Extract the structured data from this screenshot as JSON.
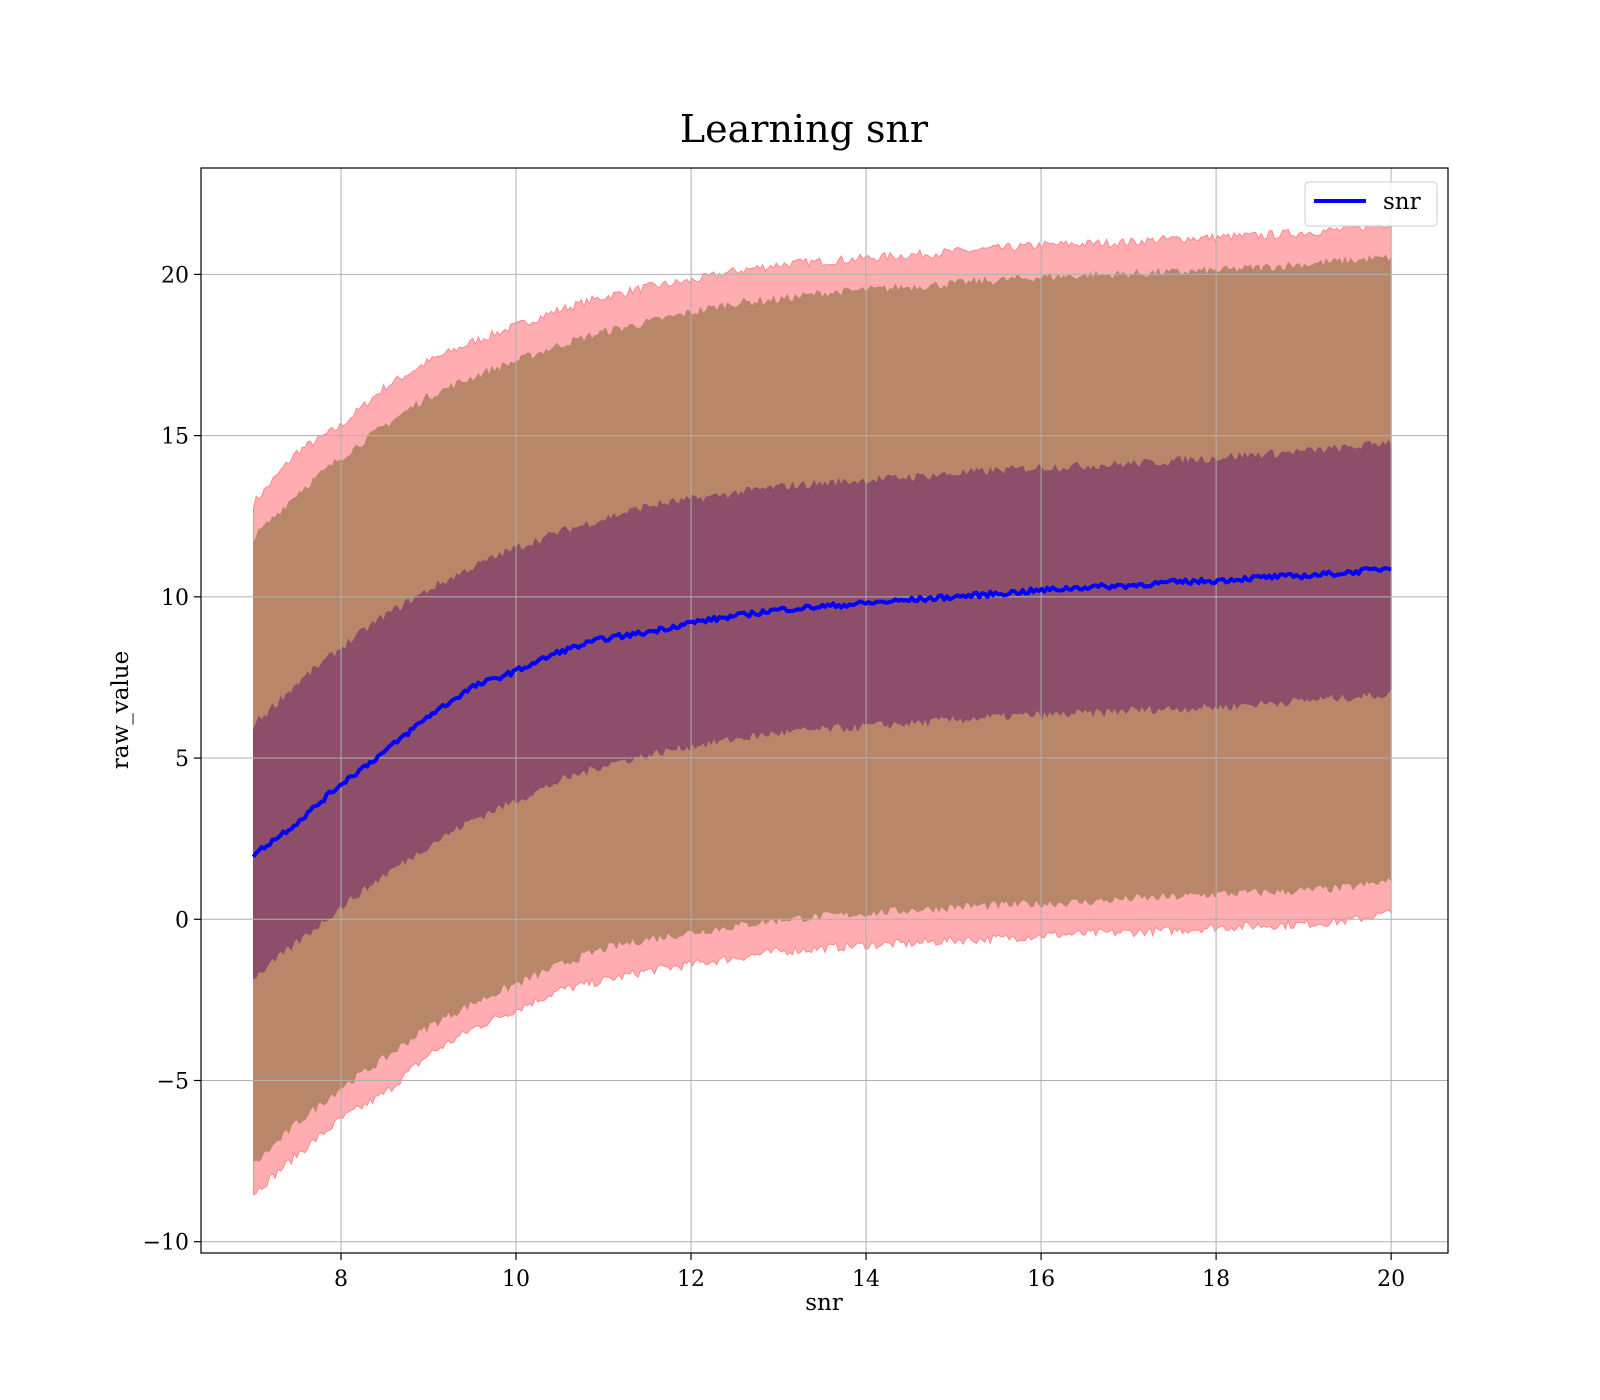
{
  "chart_data": {
    "type": "line",
    "title": "Learning snr",
    "xlabel": "snr",
    "ylabel": "raw_value",
    "xlim": [
      6.4,
      20.65
    ],
    "ylim": [
      -10.35,
      23.3
    ],
    "x_ticks": [
      8,
      10,
      12,
      14,
      16,
      18,
      20
    ],
    "x_tick_labels": [
      "8",
      "10",
      "12",
      "14",
      "16",
      "18",
      "20"
    ],
    "y_ticks": [
      -10,
      -5,
      0,
      5,
      10,
      15,
      20
    ],
    "y_tick_labels": [
      "−10",
      "−5",
      "0",
      "5",
      "10",
      "15",
      "20"
    ],
    "grid": true,
    "legend": {
      "placement": "top-right",
      "entries": [
        "snr"
      ]
    },
    "colors": {
      "mean_line": "#0000ff",
      "outer_band": "#ff8a8e",
      "middle_band": "#b8876a",
      "inner_band": "#8c4e69"
    },
    "series": [
      {
        "name": "snr",
        "x": [
          7.0,
          7.5,
          8.0,
          8.5,
          9.0,
          9.5,
          10.0,
          10.5,
          11.0,
          11.5,
          12.0,
          12.5,
          13.0,
          13.5,
          14.0,
          14.5,
          15.0,
          15.5,
          16.0,
          16.5,
          17.0,
          17.5,
          18.0,
          18.5,
          19.0,
          19.5,
          20.0
        ],
        "mean": [
          2.0,
          3.0,
          4.2,
          5.2,
          6.3,
          7.2,
          7.7,
          8.3,
          8.7,
          8.9,
          9.2,
          9.4,
          9.6,
          9.7,
          9.8,
          9.9,
          10.0,
          10.1,
          10.2,
          10.3,
          10.35,
          10.45,
          10.5,
          10.6,
          10.65,
          10.75,
          10.9
        ]
      }
    ],
    "bands": [
      {
        "level": "outer",
        "upper": [
          12.9,
          14.5,
          15.3,
          16.5,
          17.3,
          17.9,
          18.4,
          18.9,
          19.3,
          19.6,
          19.8,
          20.1,
          20.3,
          20.4,
          20.5,
          20.6,
          20.7,
          20.8,
          20.9,
          20.95,
          21.0,
          21.1,
          21.15,
          21.2,
          21.3,
          21.4,
          21.6
        ],
        "lower": [
          -8.5,
          -7.3,
          -6.2,
          -5.4,
          -4.2,
          -3.4,
          -2.8,
          -2.2,
          -1.9,
          -1.6,
          -1.4,
          -1.2,
          -1.0,
          -0.9,
          -0.8,
          -0.75,
          -0.65,
          -0.6,
          -0.5,
          -0.45,
          -0.4,
          -0.35,
          -0.25,
          -0.2,
          -0.15,
          -0.05,
          0.2
        ]
      },
      {
        "level": "middle",
        "upper": [
          11.8,
          13.2,
          14.3,
          15.3,
          16.2,
          16.8,
          17.3,
          17.8,
          18.2,
          18.5,
          18.8,
          19.1,
          19.2,
          19.4,
          19.5,
          19.6,
          19.7,
          19.8,
          19.9,
          19.95,
          20.0,
          20.05,
          20.1,
          20.2,
          20.3,
          20.4,
          20.5
        ],
        "lower": [
          -7.6,
          -6.3,
          -5.2,
          -4.3,
          -3.3,
          -2.6,
          -2.0,
          -1.4,
          -0.9,
          -0.6,
          -0.4,
          -0.2,
          0.0,
          0.1,
          0.2,
          0.3,
          0.4,
          0.45,
          0.5,
          0.55,
          0.65,
          0.7,
          0.8,
          0.85,
          0.9,
          1.0,
          1.2
        ]
      },
      {
        "level": "inner",
        "upper": [
          6.0,
          7.3,
          8.4,
          9.4,
          10.2,
          10.9,
          11.5,
          12.0,
          12.4,
          12.8,
          13.0,
          13.2,
          13.4,
          13.5,
          13.6,
          13.7,
          13.8,
          13.9,
          14.0,
          14.05,
          14.1,
          14.2,
          14.3,
          14.4,
          14.5,
          14.6,
          14.8
        ],
        "lower": [
          -1.8,
          -0.7,
          0.4,
          1.4,
          2.3,
          3.1,
          3.7,
          4.3,
          4.8,
          5.1,
          5.4,
          5.6,
          5.8,
          5.9,
          6.0,
          6.1,
          6.2,
          6.3,
          6.35,
          6.4,
          6.5,
          6.55,
          6.6,
          6.7,
          6.8,
          6.9,
          7.0
        ]
      }
    ]
  }
}
